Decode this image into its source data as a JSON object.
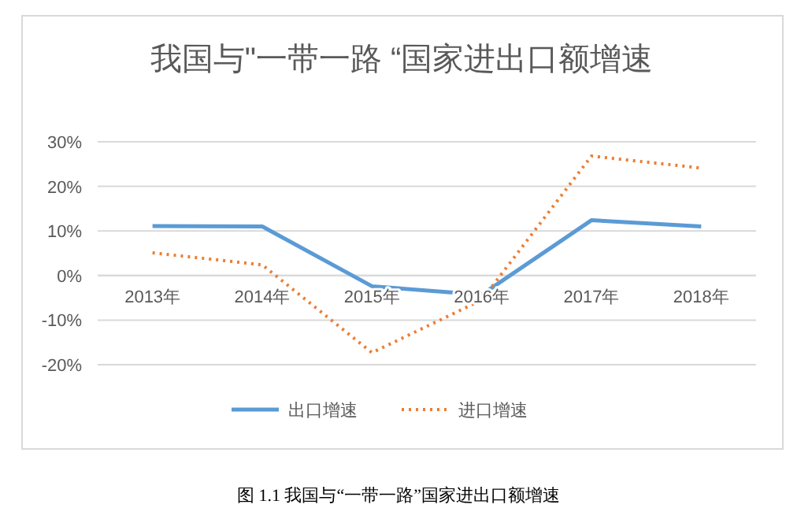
{
  "chart_data": {
    "type": "line",
    "title": "我国与\"一带一路 “国家进出口额增速",
    "categories": [
      "2013年",
      "2014年",
      "2015年",
      "2016年",
      "2017年",
      "2018年"
    ],
    "series": [
      {
        "name": "出口增速",
        "color": "#5b9bd5",
        "line_style": "solid",
        "values": [
          11.1,
          11,
          -2.4,
          -4.3,
          12.4,
          11
        ]
      },
      {
        "name": "进口增速",
        "color": "#ed7d31",
        "line_style": "dotted",
        "values": [
          5.1,
          2.4,
          -17.3,
          -5.5,
          26.8,
          24.1
        ]
      }
    ],
    "ylim": [
      -20,
      30
    ],
    "yticks": [
      {
        "value": 30,
        "label": "30%"
      },
      {
        "value": 20,
        "label": "20%"
      },
      {
        "value": 10,
        "label": "10%"
      },
      {
        "value": 0,
        "label": "0%"
      },
      {
        "value": -10,
        "label": "-10%"
      },
      {
        "value": -20,
        "label": "-20%"
      }
    ],
    "grid": "y",
    "legend": "bottom",
    "marker": "none",
    "annotations": [
      "图 1.1  我国与“一带一路”国家进出口额增速"
    ]
  }
}
